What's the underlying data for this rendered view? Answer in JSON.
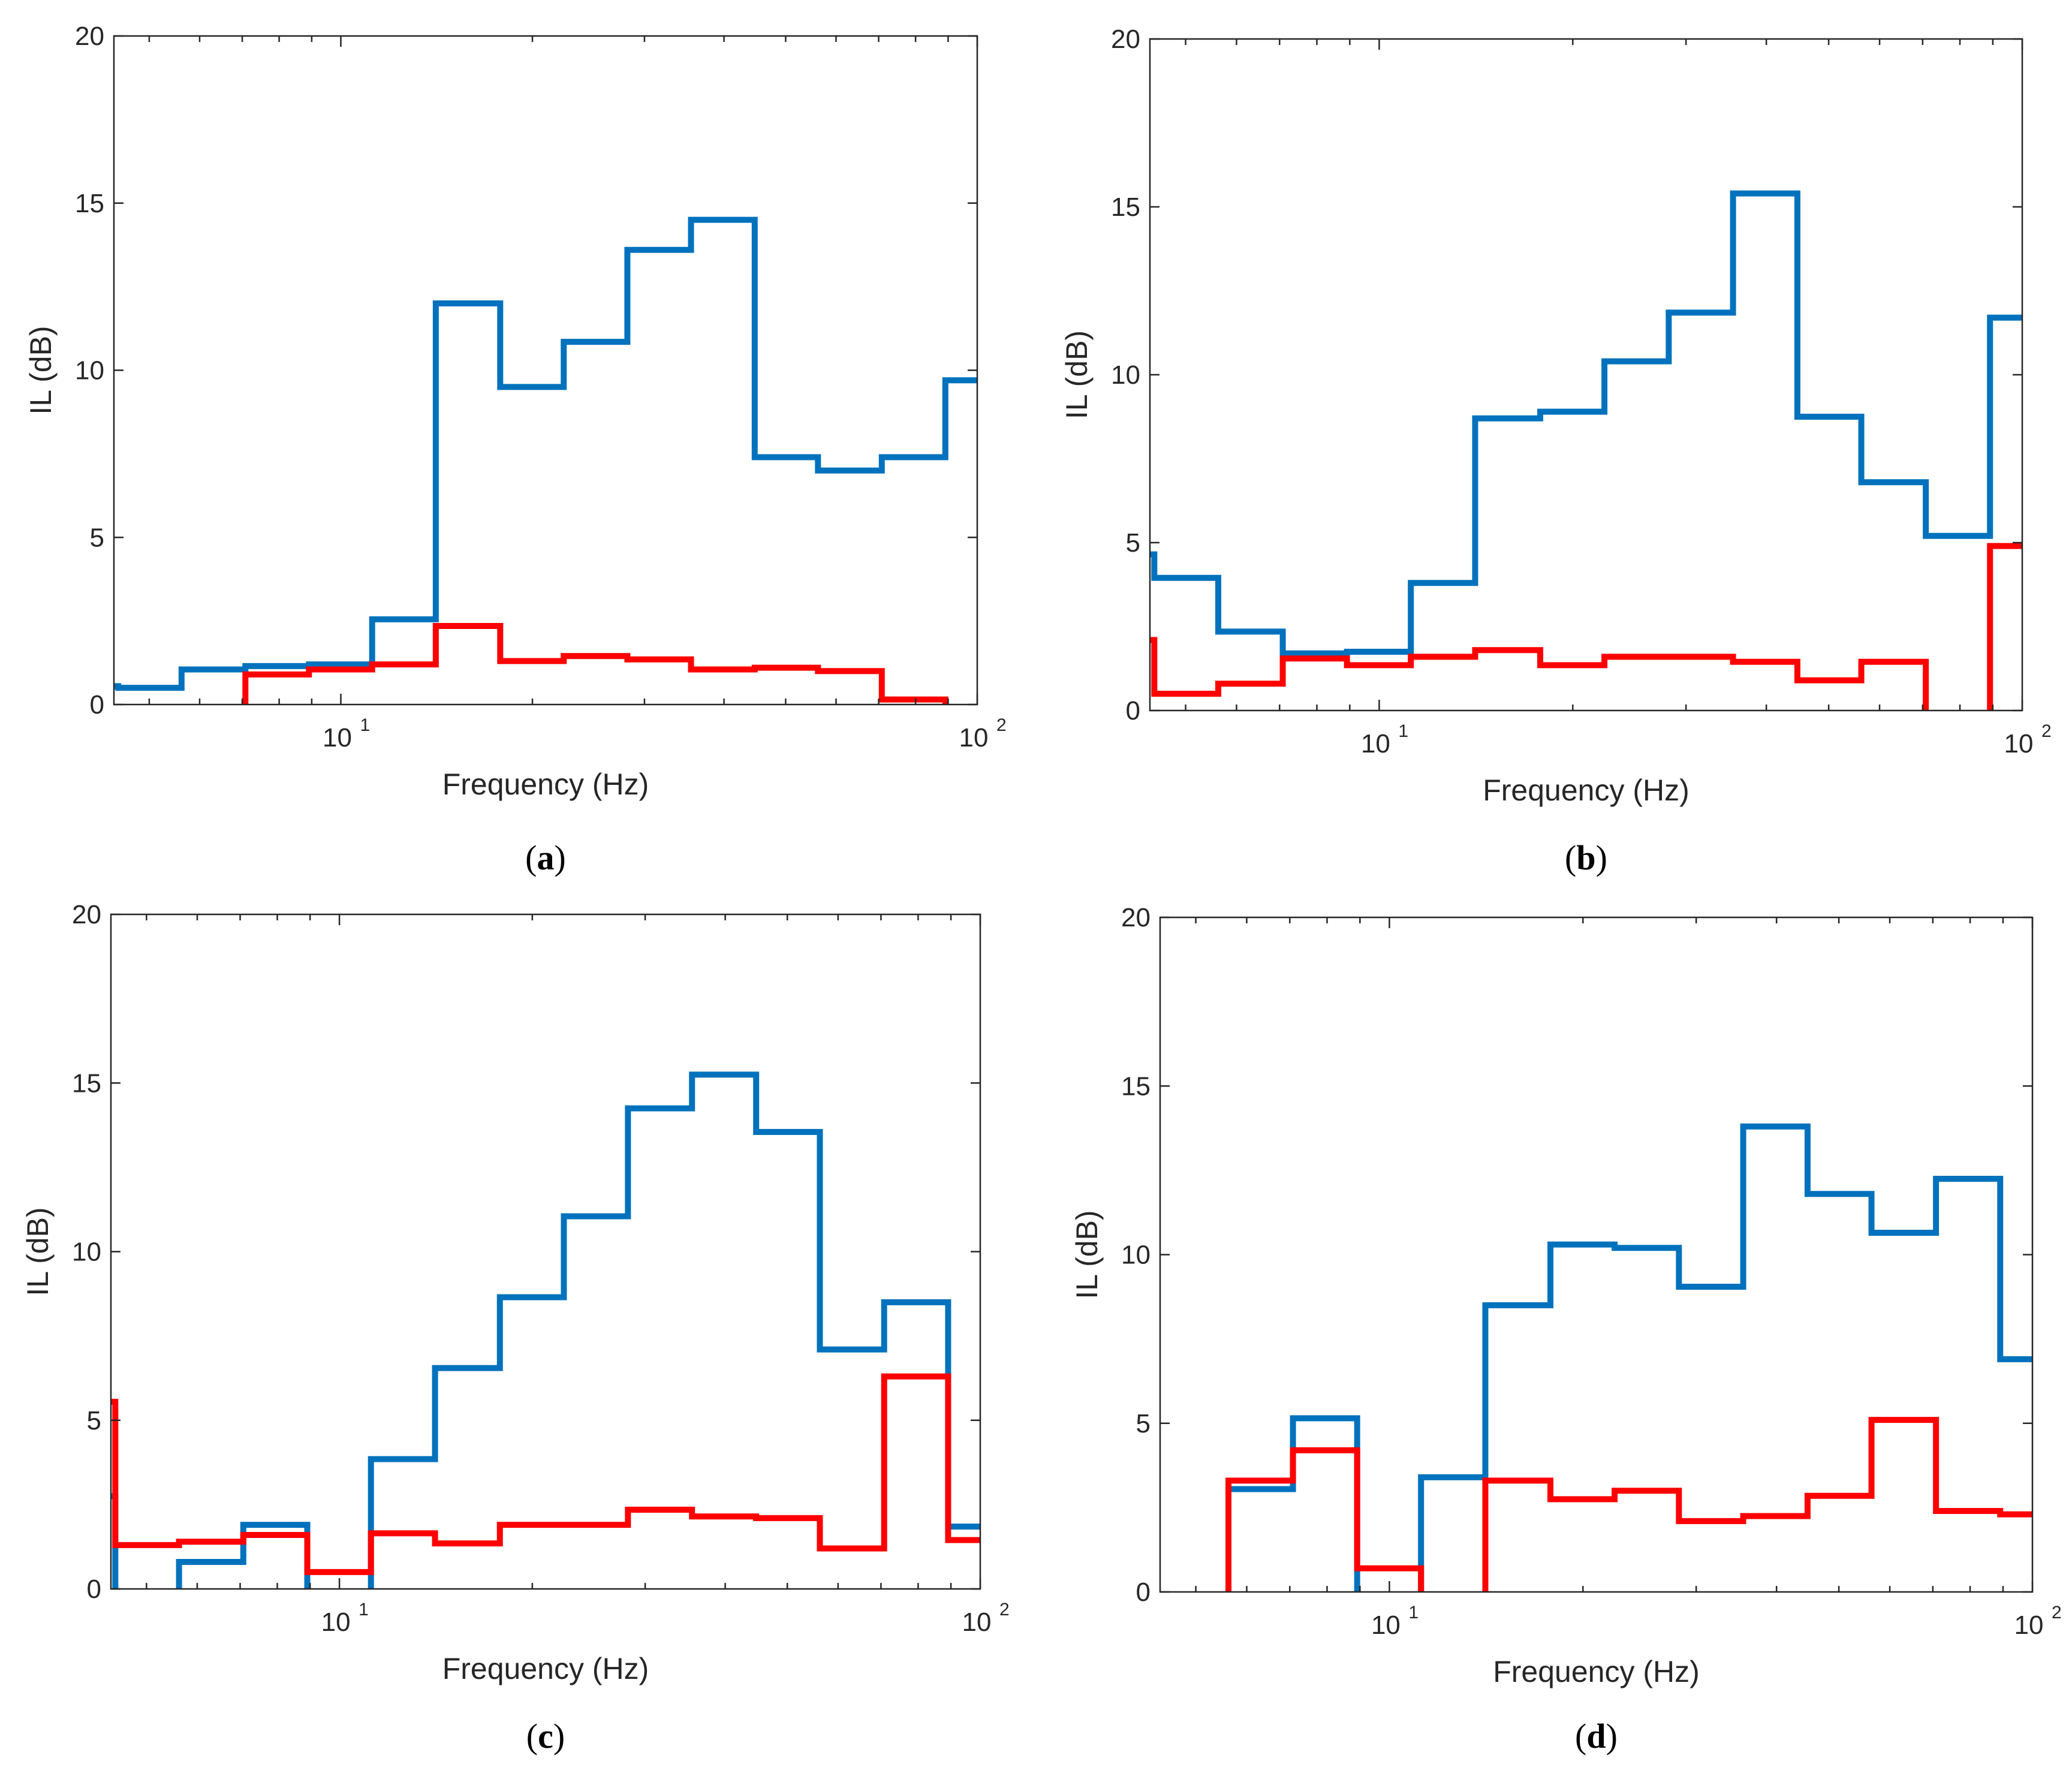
{
  "colors": {
    "blue": "#0072BD",
    "red": "#FF0000",
    "axis": "#262626"
  },
  "chart_data": [
    {
      "type": "line",
      "step": true,
      "panel_label": "a",
      "xscale": "log",
      "xlim": [
        4.4,
        100
      ],
      "ylim": [
        0,
        20
      ],
      "xlabel": "Frequency (Hz)",
      "ylabel": "IL (dB)",
      "yticks": [
        "0",
        "5",
        "10",
        "15",
        "20"
      ],
      "xticks": [
        {
          "base": "10",
          "exp": "1",
          "value": 10
        },
        {
          "base": "10",
          "exp": "2",
          "value": 100
        }
      ],
      "series": [
        {
          "name": "blue",
          "color": "#0072BD",
          "edges": [
            4.4,
            4.47,
            5.62,
            7.08,
            8.91,
            11.2,
            14.1,
            17.8,
            22.4,
            28.2,
            35.5,
            44.7,
            56.2,
            70.8,
            89.1,
            100
          ],
          "values": [
            0.55,
            0.5,
            1.05,
            1.15,
            1.2,
            2.55,
            12.0,
            9.5,
            10.85,
            13.6,
            14.5,
            7.4,
            7.0,
            7.4,
            9.7
          ]
        },
        {
          "name": "red",
          "color": "#FF0000",
          "edges": [
            7.08,
            8.91,
            11.2,
            14.1,
            17.8,
            22.4,
            28.2,
            35.5,
            44.7,
            56.2,
            70.8,
            89.1
          ],
          "values": [
            0.9,
            1.05,
            1.2,
            2.35,
            1.3,
            1.45,
            1.35,
            1.05,
            1.1,
            1.0,
            0.15
          ],
          "start_from": 0,
          "end_to": 0
        }
      ]
    },
    {
      "type": "line",
      "step": true,
      "panel_label": "b",
      "xscale": "log",
      "xlim": [
        4.4,
        100
      ],
      "ylim": [
        0,
        20
      ],
      "xlabel": "Frequency (Hz)",
      "ylabel": "IL (dB)",
      "yticks": [
        "0",
        "5",
        "10",
        "15",
        "20"
      ],
      "xticks": [
        {
          "base": "10",
          "exp": "1",
          "value": 10
        },
        {
          "base": "10",
          "exp": "2",
          "value": 100
        }
      ],
      "series": [
        {
          "name": "blue",
          "color": "#0072BD",
          "edges": [
            4.4,
            4.47,
            5.62,
            7.08,
            8.91,
            11.2,
            14.1,
            17.8,
            22.4,
            28.2,
            35.5,
            44.7,
            56.2,
            70.8,
            89.1,
            100
          ],
          "values": [
            4.65,
            3.95,
            2.35,
            1.7,
            1.75,
            3.8,
            8.7,
            8.9,
            10.4,
            11.85,
            15.4,
            8.75,
            6.8,
            5.2,
            11.7
          ]
        },
        {
          "name": "red",
          "color": "#FF0000",
          "edges": [
            4.4,
            4.47,
            5.62,
            7.08,
            8.91,
            11.2,
            14.1,
            17.8,
            22.4,
            28.2,
            35.5,
            44.7,
            56.2,
            70.8
          ],
          "values": [
            2.1,
            0.5,
            0.8,
            1.55,
            1.35,
            1.6,
            1.8,
            1.35,
            1.6,
            1.6,
            1.45,
            0.9,
            1.45
          ],
          "end_to": 0,
          "extra": {
            "edges": [
              89.1,
              100
            ],
            "values": [
              4.9
            ],
            "start_from": 0
          }
        }
      ]
    },
    {
      "type": "line",
      "step": true,
      "panel_label": "c",
      "xscale": "log",
      "xlim": [
        4.4,
        100
      ],
      "ylim": [
        0,
        20
      ],
      "xlabel": "Frequency (Hz)",
      "ylabel": "IL (dB)",
      "yticks": [
        "0",
        "5",
        "10",
        "15",
        "20"
      ],
      "xticks": [
        {
          "base": "10",
          "exp": "1",
          "value": 10
        },
        {
          "base": "10",
          "exp": "2",
          "value": 100
        }
      ],
      "series": [
        {
          "name": "blue",
          "color": "#0072BD",
          "edges": [
            4.4,
            4.47
          ],
          "values": [
            2.75
          ],
          "end_to": 0,
          "segments": [
            {
              "edges": [
                5.62,
                7.08,
                8.91
              ],
              "values": [
                0.8,
                1.9
              ],
              "start_from": 0,
              "end_to": 0
            },
            {
              "edges": [
                11.2,
                14.1,
                17.8,
                22.4,
                28.2,
                35.5,
                44.7,
                56.2,
                70.8,
                89.1
              ],
              "values": [
                3.85,
                6.55,
                8.65,
                11.05,
                14.25,
                15.25,
                13.55,
                7.1,
                8.5
              ],
              "start_from": 0,
              "end_to": 2.75
            },
            {
              "edges": [
                89.1,
                100
              ],
              "values": [
                1.85
              ],
              "start_from": 2.75
            }
          ]
        },
        {
          "name": "red",
          "color": "#FF0000",
          "edges": [
            4.4,
            4.47,
            5.62,
            7.08,
            8.91,
            11.2,
            14.1,
            17.8,
            22.4,
            28.2,
            35.5,
            44.7,
            56.2,
            70.8,
            89.1,
            100
          ],
          "values": [
            5.55,
            1.3,
            1.4,
            1.6,
            0.5,
            1.65,
            1.35,
            1.9,
            1.9,
            2.35,
            2.15,
            2.1,
            1.2,
            6.3,
            1.45
          ]
        }
      ]
    },
    {
      "type": "line",
      "step": true,
      "panel_label": "d",
      "xscale": "log",
      "xlim": [
        4.4,
        100
      ],
      "ylim": [
        0,
        20
      ],
      "xlabel": "Frequency (Hz)",
      "ylabel": "IL (dB)",
      "yticks": [
        "0",
        "5",
        "10",
        "15",
        "20"
      ],
      "xticks": [
        {
          "base": "10",
          "exp": "1",
          "value": 10
        },
        {
          "base": "10",
          "exp": "2",
          "value": 100
        }
      ],
      "series": [
        {
          "name": "blue",
          "color": "#0072BD",
          "edges": [
            5.62,
            7.08,
            8.91
          ],
          "values": [
            3.05,
            5.15
          ],
          "start_from": 0,
          "end_to": 0,
          "segments": [
            {
              "edges": [
                11.2,
                14.1,
                17.8,
                22.4,
                28.2,
                35.5,
                44.7,
                56.2,
                70.8,
                89.1,
                100
              ],
              "values": [
                3.4,
                8.5,
                10.3,
                10.2,
                9.05,
                13.8,
                11.8,
                10.65,
                12.25,
                6.9
              ],
              "start_from": 0
            }
          ]
        },
        {
          "name": "red",
          "color": "#FF0000",
          "edges": [
            5.62,
            7.08,
            8.91,
            11.2
          ],
          "values": [
            3.3,
            4.2,
            0.7
          ],
          "start_from": 0,
          "end_to": 0,
          "segments": [
            {
              "edges": [
                14.1,
                17.8,
                22.4,
                28.2,
                35.5,
                44.7,
                56.2,
                70.8,
                89.1,
                100
              ],
              "values": [
                3.3,
                2.75,
                3.0,
                2.1,
                2.25,
                2.85,
                5.1,
                2.4,
                2.3
              ],
              "start_from": 0
            }
          ]
        }
      ]
    }
  ]
}
